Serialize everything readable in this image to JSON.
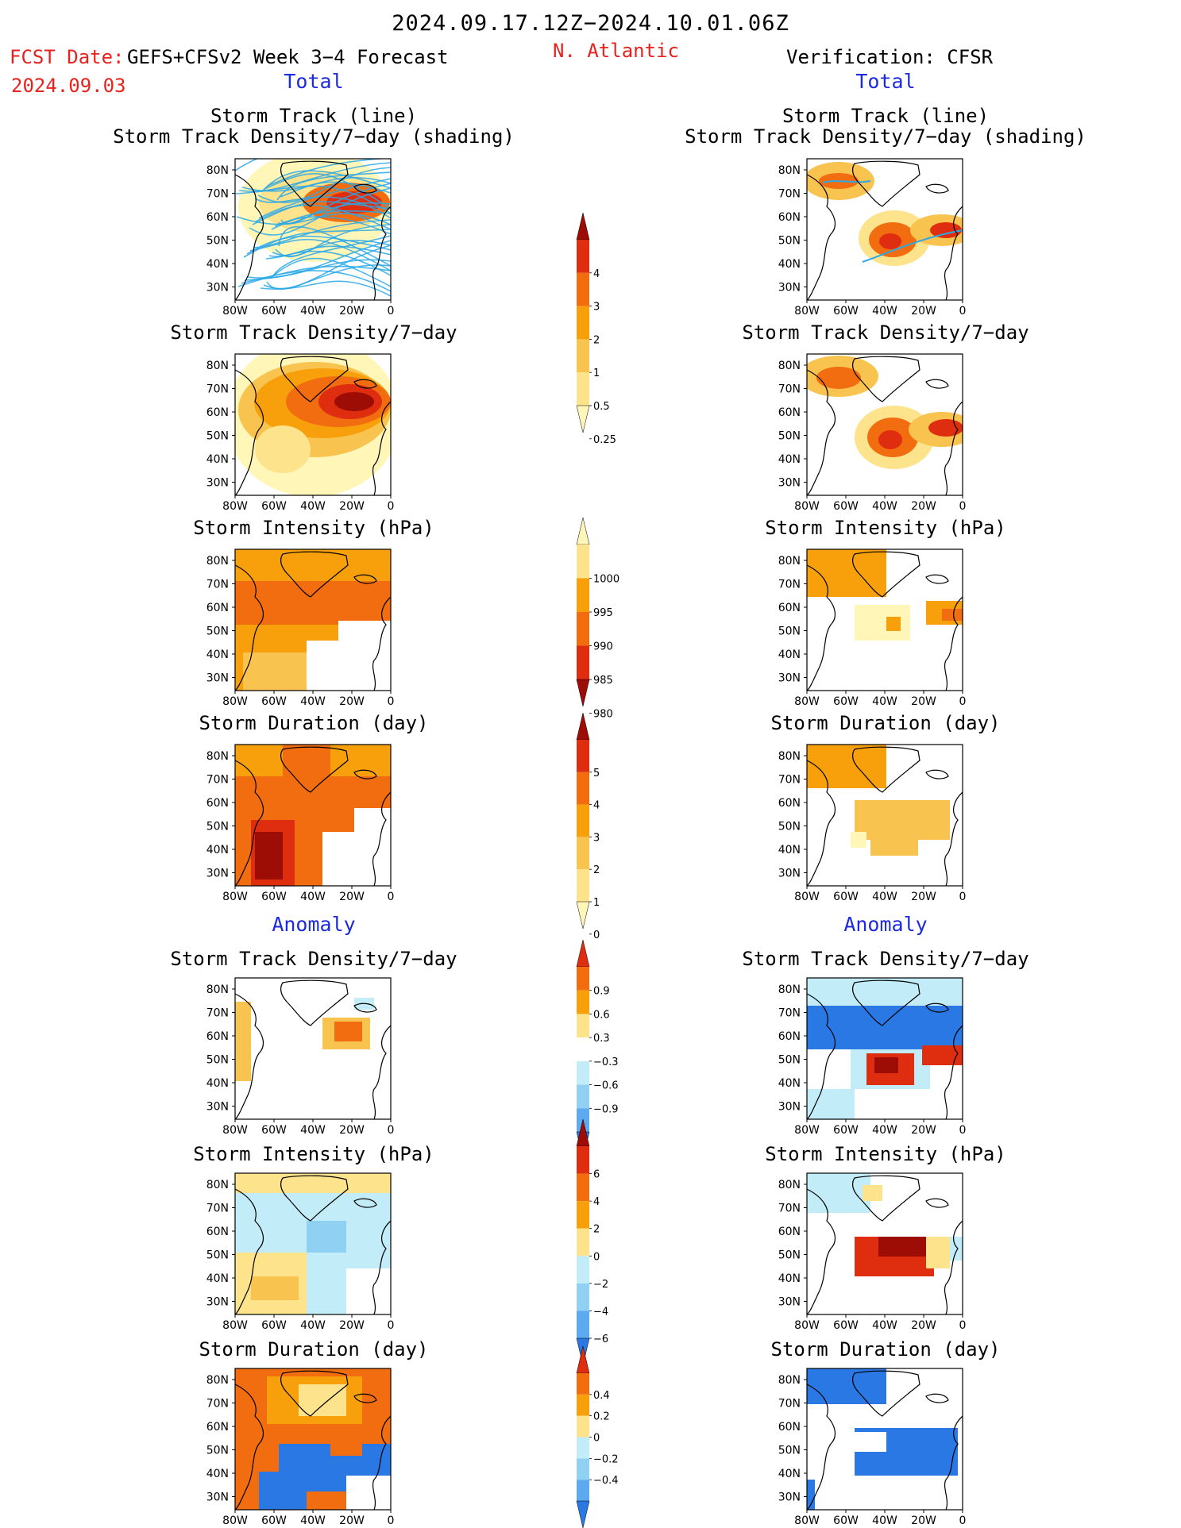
{
  "header": {
    "date_range": "2024.09.17.12Z−2024.10.01.06Z",
    "fcst_date_label": "FCST Date:",
    "fcst_model": "GEFS+CFSv2 Week 3−4 Forecast",
    "fcst_init": "2024.09.03",
    "region": "N. Atlantic",
    "verification": "Verification: CFSR"
  },
  "sections": {
    "total_left": "Total",
    "total_right": "Total",
    "anomaly_left": "Anomaly",
    "anomaly_right": "Anomaly"
  },
  "panel_titles": {
    "track_line": "Storm Track (line)",
    "track_shading": "Storm Track Density/7−day (shading)",
    "density": "Storm Track Density/7−day",
    "intensity": "Storm Intensity (hPa)",
    "duration": "Storm Duration (day)"
  },
  "axes": {
    "lat_labels": [
      "80N",
      "70N",
      "60N",
      "50N",
      "40N",
      "30N"
    ],
    "lon_labels": [
      "80W",
      "60W",
      "40W",
      "20W",
      "0"
    ]
  },
  "colors": {
    "warm": [
      "#fff6b8",
      "#fde38c",
      "#f9c34f",
      "#f7a00c",
      "#f26c10",
      "#df2d0f",
      "#9e0c06"
    ],
    "cool": [
      "#c3ecf9",
      "#8fd0f3",
      "#5daaf0",
      "#2a78e3",
      "#1958cf"
    ],
    "coast": "#000000",
    "track": "#2aa8e8"
  },
  "colorbars": [
    {
      "labels": [
        "4",
        "3",
        "2",
        "1",
        "0.5",
        "0.25"
      ]
    },
    {
      "labels": [
        "1000",
        "995",
        "990",
        "985",
        "980"
      ]
    },
    {
      "labels": [
        "5",
        "4",
        "3",
        "2",
        "1",
        "0"
      ]
    },
    {
      "labels": [
        "0.9",
        "0.6",
        "0.3",
        "−0.3",
        "−0.6",
        "−0.9"
      ]
    },
    {
      "labels": [
        "6",
        "4",
        "2",
        "0",
        "−2",
        "−4",
        "−6"
      ]
    },
    {
      "labels": [
        "0.4",
        "0.2",
        "0",
        "−0.2",
        "−0.4"
      ]
    }
  ]
}
